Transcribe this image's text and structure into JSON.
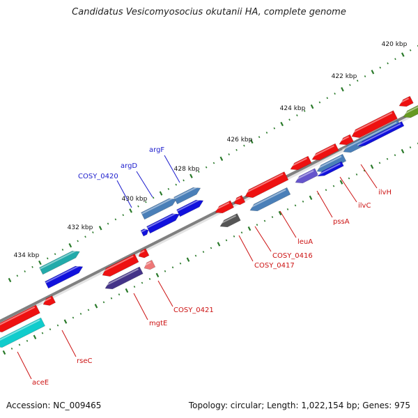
{
  "title": "Candidatus Vesicomyosocius okutanii HA, complete genome",
  "footer": {
    "accession": "Accession: NC_009465",
    "summary": "Topology: circular; Length: 1,022,154 bp; Genes: 975"
  },
  "scale_labels": [
    "420 kbp",
    "422 kbp",
    "424 kbp",
    "426 kbp",
    "428 kbp",
    "430 kbp",
    "432 kbp",
    "434 kbp"
  ],
  "gene_labels": {
    "forward": [
      "COSY_0420",
      "argD",
      "argF"
    ],
    "reverse": [
      "ilvH",
      "ilvC",
      "pssA",
      "leuA",
      "COSY_0416",
      "COSY_0417",
      "COSY_0421",
      "mgtE",
      "rseC",
      "aceE"
    ]
  },
  "colors": {
    "backbone": "#808080",
    "forward_label": "#1a1acc",
    "reverse_label": "#cc1111",
    "tick": "#2a7a2a",
    "red": "#ee1111",
    "blue": "#1111dd",
    "steel": "#4a7fb8",
    "cyan": "#11cccc",
    "teal": "#22aaaa",
    "navy": "#443388",
    "gray": "#555555",
    "salmon": "#ee7777",
    "purple": "#6655cc",
    "olive": "#669922"
  }
}
